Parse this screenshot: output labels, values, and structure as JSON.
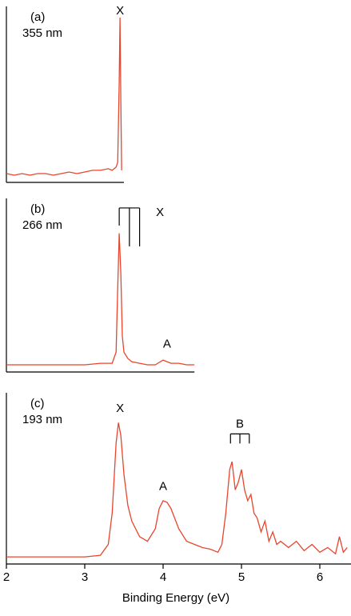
{
  "chart_data": [
    {
      "type": "line",
      "title": "(a)",
      "subtitle": "355 nm",
      "xlim": [
        2,
        3.5
      ],
      "ylim": [
        0,
        1
      ],
      "annotations": [
        {
          "text": "X",
          "x": 3.45,
          "y": 1.04
        }
      ],
      "series": [
        {
          "color": "#e8452c",
          "x": [
            2.0,
            2.1,
            2.2,
            2.3,
            2.4,
            2.5,
            2.6,
            2.7,
            2.8,
            2.9,
            3.0,
            3.1,
            3.2,
            3.3,
            3.35,
            3.4,
            3.42,
            3.44,
            3.45,
            3.46,
            3.47
          ],
          "values": [
            0.03,
            0.02,
            0.03,
            0.02,
            0.03,
            0.03,
            0.02,
            0.03,
            0.04,
            0.03,
            0.04,
            0.05,
            0.05,
            0.06,
            0.05,
            0.07,
            0.1,
            0.6,
            1.0,
            0.5,
            0.05
          ]
        }
      ]
    },
    {
      "type": "line",
      "title": "(b)",
      "subtitle": "266 nm",
      "xlim": [
        2,
        4.4
      ],
      "ylim": [
        0,
        1
      ],
      "annotations": [
        {
          "text": "X",
          "x": 3.96,
          "y": 0.98,
          "comb": [
            3.44,
            3.57,
            3.7
          ]
        },
        {
          "text": "A",
          "x": 4.05,
          "y": 0.15
        }
      ],
      "series": [
        {
          "color": "#e8452c",
          "x": [
            2.0,
            2.2,
            2.4,
            2.6,
            2.8,
            3.0,
            3.2,
            3.35,
            3.4,
            3.42,
            3.44,
            3.46,
            3.48,
            3.5,
            3.55,
            3.6,
            3.7,
            3.8,
            3.9,
            4.0,
            4.05,
            4.1,
            4.2,
            4.3,
            4.4
          ],
          "values": [
            0.02,
            0.02,
            0.02,
            0.02,
            0.02,
            0.02,
            0.03,
            0.03,
            0.1,
            0.5,
            0.85,
            0.6,
            0.2,
            0.1,
            0.06,
            0.04,
            0.03,
            0.02,
            0.02,
            0.05,
            0.04,
            0.03,
            0.03,
            0.02,
            0.02
          ]
        }
      ]
    },
    {
      "type": "line",
      "title": "(c)",
      "subtitle": "193 nm",
      "x_label": "Binding Energy (eV)",
      "xlim": [
        2,
        6.4
      ],
      "ylim": [
        0,
        1
      ],
      "xticks": [
        2,
        3,
        4,
        5,
        6
      ],
      "annotations": [
        {
          "text": "X",
          "x": 3.45,
          "y": 0.97
        },
        {
          "text": "A",
          "x": 4.0,
          "y": 0.47
        },
        {
          "text": "B",
          "x": 4.98,
          "y": 0.87,
          "comb": [
            4.86,
            4.98,
            5.1
          ]
        }
      ],
      "series": [
        {
          "color": "#e8452c",
          "x": [
            2.0,
            2.2,
            2.4,
            2.6,
            2.8,
            3.0,
            3.2,
            3.3,
            3.35,
            3.4,
            3.43,
            3.46,
            3.5,
            3.55,
            3.6,
            3.7,
            3.8,
            3.9,
            3.95,
            4.0,
            4.05,
            4.1,
            4.2,
            4.3,
            4.4,
            4.5,
            4.6,
            4.7,
            4.75,
            4.8,
            4.85,
            4.88,
            4.92,
            4.96,
            5.0,
            5.04,
            5.08,
            5.12,
            5.16,
            5.2,
            5.25,
            5.3,
            5.35,
            5.4,
            5.45,
            5.5,
            5.6,
            5.7,
            5.8,
            5.9,
            6.0,
            6.1,
            6.2,
            6.25,
            6.3,
            6.35
          ],
          "values": [
            0.02,
            0.02,
            0.02,
            0.02,
            0.02,
            0.02,
            0.03,
            0.1,
            0.3,
            0.75,
            0.88,
            0.8,
            0.55,
            0.35,
            0.25,
            0.15,
            0.12,
            0.2,
            0.33,
            0.38,
            0.37,
            0.33,
            0.2,
            0.12,
            0.1,
            0.08,
            0.07,
            0.05,
            0.1,
            0.3,
            0.58,
            0.63,
            0.45,
            0.5,
            0.58,
            0.45,
            0.38,
            0.42,
            0.3,
            0.27,
            0.18,
            0.25,
            0.12,
            0.18,
            0.1,
            0.12,
            0.08,
            0.12,
            0.06,
            0.1,
            0.05,
            0.08,
            0.04,
            0.15,
            0.05,
            0.08
          ]
        }
      ]
    }
  ]
}
